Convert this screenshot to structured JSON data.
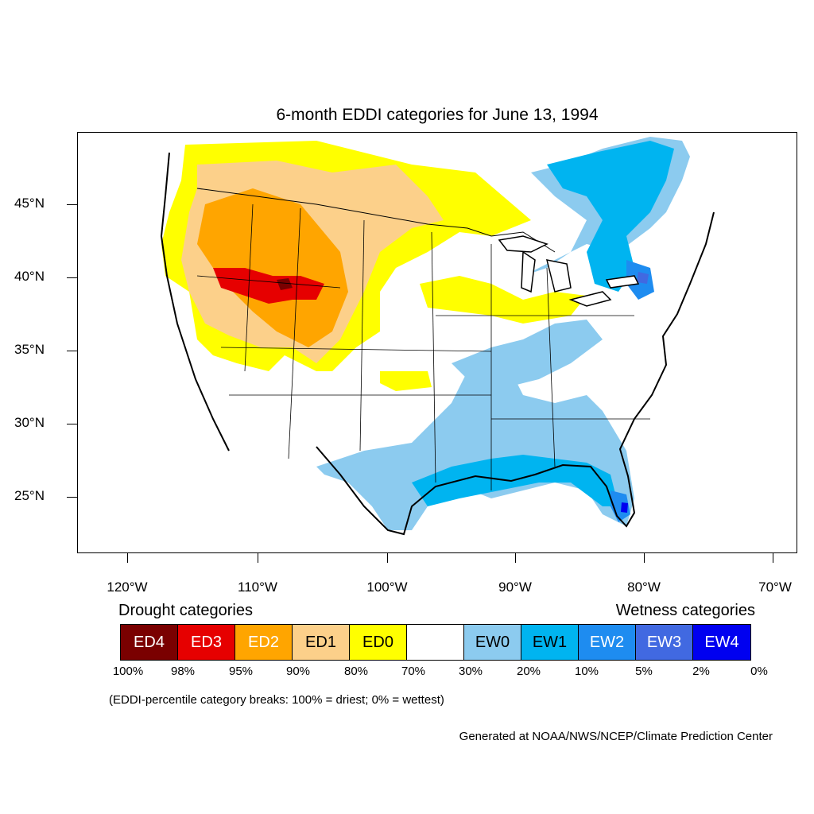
{
  "title": "6-month EDDI categories for June 13, 1994",
  "lat_labels": [
    "45°N",
    "40°N",
    "35°N",
    "30°N",
    "25°N"
  ],
  "lon_labels": [
    "120°W",
    "110°W",
    "100°W",
    "90°W",
    "80°W",
    "70°W"
  ],
  "drought_heading": "Drought categories",
  "wetness_heading": "Wetness categories",
  "categories": [
    {
      "label": "ED4",
      "color": "#7a0000"
    },
    {
      "label": "ED3",
      "color": "#e60000"
    },
    {
      "label": "ED2",
      "color": "#ffa500"
    },
    {
      "label": "ED1",
      "color": "#fcd08a"
    },
    {
      "label": "ED0",
      "color": "#ffff00"
    },
    {
      "label": "",
      "color": "#ffffff"
    },
    {
      "label": "EW0",
      "color": "#8ccbef"
    },
    {
      "label": "EW1",
      "color": "#00b4f0"
    },
    {
      "label": "EW2",
      "color": "#1e8cf0"
    },
    {
      "label": "EW3",
      "color": "#4169e1"
    },
    {
      "label": "EW4",
      "color": "#0000f0"
    }
  ],
  "percent_breaks": [
    "100%",
    "98%",
    "95%",
    "90%",
    "80%",
    "70%",
    "30%",
    "20%",
    "10%",
    "5%",
    "2%",
    "0%"
  ],
  "note": "(EDDI-percentile category breaks: 100% = driest; 0% = wettest)",
  "credit": "Generated at NOAA/NWS/NCEP/Climate Prediction Center"
}
